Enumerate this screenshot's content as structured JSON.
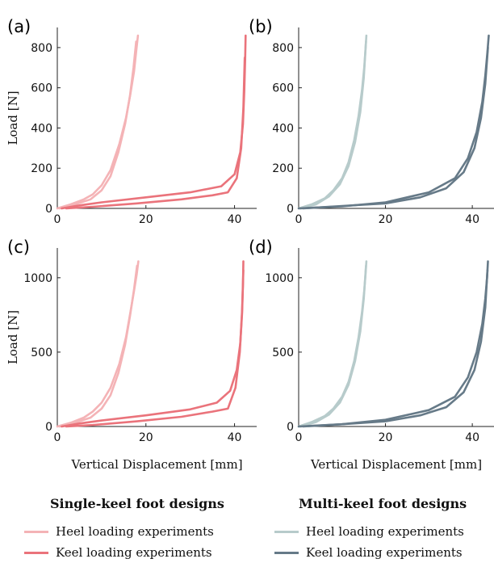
{
  "colors": {
    "single_heel": "#f4b3b6",
    "single_keel": "#ea737b",
    "multi_heel": "#b7cbcb",
    "multi_keel": "#667a88"
  },
  "legend": {
    "single": {
      "title": "Single-keel foot designs",
      "heel": "Heel loading experiments",
      "keel": "Keel loading experiments"
    },
    "multi": {
      "title": "Multi-keel foot designs",
      "heel": "Heel loading experiments",
      "keel": "Keel loading experiments"
    }
  },
  "chart_data": [
    {
      "type": "line",
      "panel": "(a)",
      "xlabel": "",
      "ylabel": "Load [N]",
      "xlim": [
        0,
        45
      ],
      "ylim": [
        0,
        900
      ],
      "xticks": [
        0,
        20,
        40
      ],
      "yticks": [
        0,
        200,
        400,
        600,
        800
      ],
      "series": [
        {
          "color_key": "single_heel",
          "x": [
            0,
            3,
            6,
            8,
            10,
            12,
            14,
            15.5,
            16.5,
            17.3,
            17.8,
            18.2
          ],
          "y": [
            0,
            20,
            45,
            70,
            115,
            190,
            320,
            450,
            570,
            680,
            780,
            860
          ]
        },
        {
          "color_key": "single_heel",
          "x": [
            0.5,
            4,
            7.5,
            10,
            12,
            13.8,
            15.3,
            16.4,
            17.2,
            17.8
          ],
          "y": [
            0,
            20,
            45,
            90,
            160,
            280,
            420,
            560,
            700,
            830
          ]
        },
        {
          "color_key": "single_keel",
          "x": [
            1,
            5,
            10,
            20,
            30,
            37,
            40,
            41.3,
            41.9,
            42.2,
            42.4,
            42.5
          ],
          "y": [
            0,
            15,
            30,
            55,
            80,
            110,
            170,
            280,
            420,
            580,
            740,
            860
          ]
        },
        {
          "color_key": "single_keel",
          "x": [
            2,
            8,
            18,
            28,
            35,
            38.5,
            40.5,
            41.5,
            42,
            42.3
          ],
          "y": [
            0,
            8,
            25,
            45,
            65,
            80,
            150,
            300,
            500,
            750
          ]
        }
      ]
    },
    {
      "type": "line",
      "panel": "(b)",
      "xlabel": "",
      "ylabel": "",
      "xlim": [
        0,
        45
      ],
      "ylim": [
        0,
        900
      ],
      "xticks": [
        0,
        20,
        40
      ],
      "yticks": [
        0,
        200,
        400,
        600,
        800
      ],
      "series": [
        {
          "color_key": "multi_heel",
          "x": [
            0,
            3,
            6,
            8,
            10,
            11.5,
            12.8,
            13.8,
            14.6,
            15.1,
            15.4,
            15.6
          ],
          "y": [
            0,
            20,
            50,
            90,
            150,
            230,
            340,
            460,
            590,
            700,
            790,
            860
          ]
        },
        {
          "color_key": "multi_heel",
          "x": [
            0.5,
            4,
            7,
            9.5,
            11.5,
            13,
            14.2,
            15,
            15.5
          ],
          "y": [
            0,
            20,
            60,
            120,
            210,
            330,
            480,
            650,
            830
          ]
        },
        {
          "color_key": "multi_keel",
          "x": [
            0,
            10,
            20,
            30,
            36,
            39,
            41,
            42.3,
            43,
            43.5,
            43.8
          ],
          "y": [
            0,
            10,
            30,
            80,
            150,
            250,
            380,
            530,
            660,
            780,
            860
          ]
        },
        {
          "color_key": "multi_keel",
          "x": [
            1,
            10,
            20,
            28,
            34,
            38,
            40.5,
            42,
            43,
            43.6
          ],
          "y": [
            0,
            12,
            25,
            55,
            100,
            180,
            300,
            450,
            620,
            800
          ]
        }
      ]
    },
    {
      "type": "line",
      "panel": "(c)",
      "xlabel": "Vertical Displacement [mm]",
      "ylabel": "Load [N]",
      "xlim": [
        0,
        45
      ],
      "ylim": [
        0,
        1200
      ],
      "xticks": [
        0,
        20,
        40
      ],
      "yticks": [
        0,
        500,
        1000
      ],
      "series": [
        {
          "color_key": "single_heel",
          "x": [
            0,
            3,
            6,
            8,
            10,
            12,
            14,
            15.5,
            16.5,
            17.3,
            17.9,
            18.3
          ],
          "y": [
            0,
            25,
            60,
            100,
            160,
            260,
            420,
            600,
            770,
            910,
            1020,
            1110
          ]
        },
        {
          "color_key": "single_heel",
          "x": [
            0.5,
            4,
            7.5,
            10,
            12,
            13.8,
            15.3,
            16.4,
            17.3,
            18
          ],
          "y": [
            0,
            25,
            60,
            120,
            210,
            360,
            550,
            740,
            920,
            1080
          ]
        },
        {
          "color_key": "single_keel",
          "x": [
            1,
            5,
            10,
            20,
            30,
            36,
            39,
            40.5,
            41.3,
            41.7,
            41.9,
            42
          ],
          "y": [
            0,
            20,
            40,
            75,
            115,
            160,
            240,
            380,
            560,
            760,
            950,
            1110
          ]
        },
        {
          "color_key": "single_keel",
          "x": [
            2,
            8,
            18,
            28,
            35,
            38.5,
            40.2,
            41.2,
            41.7,
            42
          ],
          "y": [
            0,
            10,
            35,
            65,
            100,
            120,
            260,
            500,
            780,
            1050
          ]
        }
      ]
    },
    {
      "type": "line",
      "panel": "(d)",
      "xlabel": "Vertical Displacement [mm]",
      "ylabel": "",
      "xlim": [
        0,
        45
      ],
      "ylim": [
        0,
        1200
      ],
      "xticks": [
        0,
        20,
        40
      ],
      "yticks": [
        0,
        500,
        1000
      ],
      "series": [
        {
          "color_key": "multi_heel",
          "x": [
            0,
            3,
            6,
            8,
            10,
            11.5,
            12.8,
            13.8,
            14.6,
            15.1,
            15.4,
            15.6
          ],
          "y": [
            0,
            30,
            70,
            120,
            200,
            300,
            440,
            600,
            770,
            910,
            1020,
            1110
          ]
        },
        {
          "color_key": "multi_heel",
          "x": [
            0.5,
            4,
            7,
            9.5,
            11.5,
            13,
            14.2,
            15,
            15.5
          ],
          "y": [
            0,
            30,
            80,
            160,
            280,
            440,
            640,
            860,
            1080
          ]
        },
        {
          "color_key": "multi_keel",
          "x": [
            0,
            10,
            20,
            30,
            36,
            39,
            41,
            42.3,
            43,
            43.4,
            43.6
          ],
          "y": [
            0,
            15,
            45,
            110,
            200,
            330,
            500,
            690,
            860,
            1000,
            1110
          ]
        },
        {
          "color_key": "multi_keel",
          "x": [
            1,
            10,
            20,
            28,
            34,
            38,
            40.5,
            42,
            43,
            43.5
          ],
          "y": [
            0,
            15,
            35,
            75,
            130,
            230,
            380,
            570,
            800,
            1050
          ]
        }
      ]
    }
  ]
}
